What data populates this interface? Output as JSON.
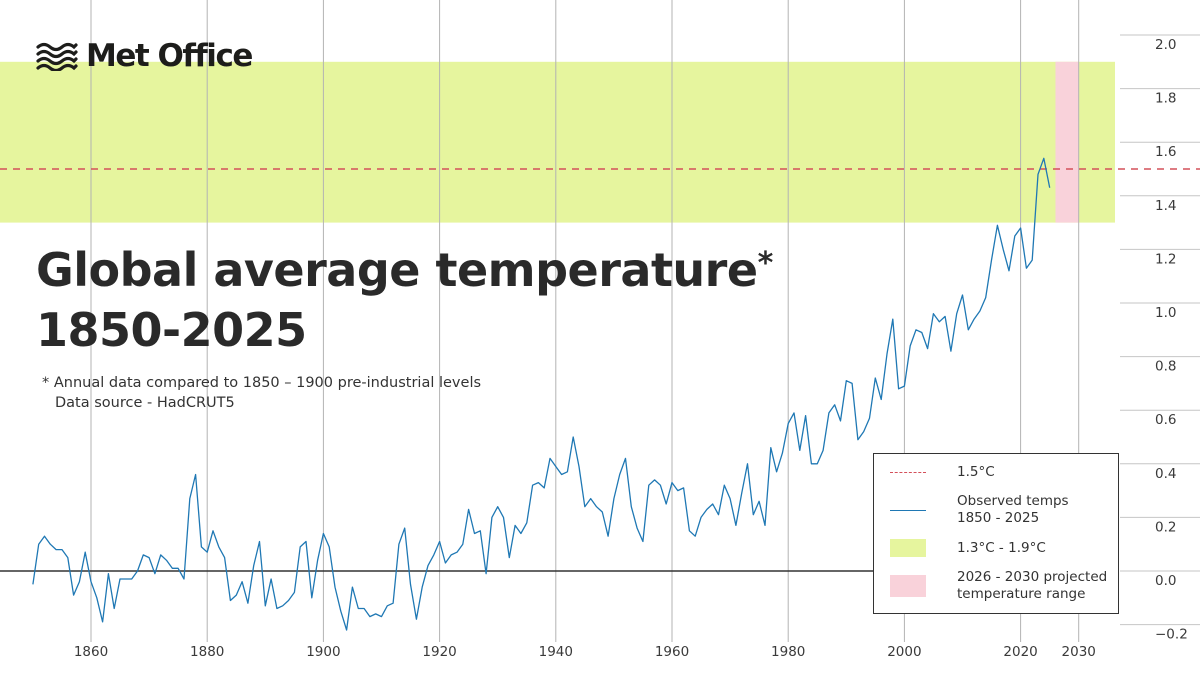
{
  "brand": {
    "name": "Met Office",
    "logo_icon": "met-office-waves-icon"
  },
  "title_line1": "Global average temperature",
  "title_star": "*",
  "title_line2": "1850-2025",
  "footnote": {
    "line1": "*  Annual data compared to 1850 – 1900 pre-industrial levels",
    "line2": "Data source - HadCRUT5"
  },
  "legend": [
    {
      "id": "threshold",
      "label": "1.5°C",
      "symbol": "dashed-line"
    },
    {
      "id": "observed",
      "label_line1": "Observed temps",
      "label_line2": "1850 - 2025",
      "symbol": "line"
    },
    {
      "id": "band",
      "label": "1.3°C - 1.9°C",
      "symbol": "green-box"
    },
    {
      "id": "projection",
      "label_line1": "2026 - 2030 projected",
      "label_line2": "temperature range",
      "symbol": "pink-box"
    }
  ],
  "colors": {
    "observed_line": "#1f78b4",
    "threshold_line": "#d4505a",
    "band_fill": "#e6f59e",
    "projection_fill": "#f9d2da",
    "gridline": "#b3b3b3",
    "zero_line": "#333333",
    "text": "#2a2a2a"
  },
  "chart_data": {
    "type": "line",
    "title": "Global average temperature 1850-2025",
    "xlim": [
      1850,
      2030
    ],
    "ylim": [
      -0.2,
      2.0
    ],
    "x_ticks": [
      1860,
      1880,
      1900,
      1920,
      1940,
      1960,
      1980,
      2000,
      2020,
      2030
    ],
    "x_tick_labels": [
      "1860",
      "1880",
      "1900",
      "1920",
      "1940",
      "1960",
      "1980",
      "2000",
      "2020",
      "2030"
    ],
    "y_ticks": [
      -0.2,
      0.0,
      0.2,
      0.4,
      0.6,
      0.8,
      1.0,
      1.2,
      1.4,
      1.6,
      1.8,
      2.0
    ],
    "y_tick_labels": [
      "−0.2",
      "0.0",
      "0.2",
      "0.4",
      "0.6",
      "0.8",
      "1.0",
      "1.2",
      "1.4",
      "1.6",
      "1.8",
      "2.0"
    ],
    "vertical_grid": true,
    "y_axis_position": "right",
    "legend_position": "bottom-right",
    "threshold": {
      "value": 1.5,
      "style": "dashed"
    },
    "band": {
      "ymin": 1.3,
      "ymax": 1.9
    },
    "projection": {
      "xmin": 2026,
      "xmax": 2030,
      "ymin": 1.3,
      "ymax": 1.9
    },
    "series": [
      {
        "start_year": 1850,
        "years": [
          1850,
          1851,
          1852,
          1853,
          1854,
          1855,
          1856,
          1857,
          1858,
          1859,
          1860,
          1861,
          1862,
          1863,
          1864,
          1865,
          1866,
          1867,
          1868,
          1869,
          1870,
          1871,
          1872,
          1873,
          1874,
          1875,
          1876,
          1877,
          1878,
          1879,
          1880,
          1881,
          1882,
          1883,
          1884,
          1885,
          1886,
          1887,
          1888,
          1889,
          1890,
          1891,
          1892,
          1893,
          1894,
          1895,
          1896,
          1897,
          1898,
          1899,
          1900,
          1901,
          1902,
          1903,
          1904,
          1905,
          1906,
          1907,
          1908,
          1909,
          1910,
          1911,
          1912,
          1913,
          1914,
          1915,
          1916,
          1917,
          1918,
          1919,
          1920,
          1921,
          1922,
          1923,
          1924,
          1925,
          1926,
          1927,
          1928,
          1929,
          1930,
          1931,
          1932,
          1933,
          1934,
          1935,
          1936,
          1937,
          1938,
          1939,
          1940,
          1941,
          1942,
          1943,
          1944,
          1945,
          1946,
          1947,
          1948,
          1949,
          1950,
          1951,
          1952,
          1953,
          1954,
          1955,
          1956,
          1957,
          1958,
          1959,
          1960,
          1961,
          1962,
          1963,
          1964,
          1965,
          1966,
          1967,
          1968,
          1969,
          1970,
          1971,
          1972,
          1973,
          1974,
          1975,
          1976,
          1977,
          1978,
          1979,
          1980,
          1981,
          1982,
          1983,
          1984,
          1985,
          1986,
          1987,
          1988,
          1989,
          1990,
          1991,
          1992,
          1993,
          1994,
          1995,
          1996,
          1997,
          1998,
          1999,
          2000,
          2001,
          2002,
          2003,
          2004,
          2005,
          2006,
          2007,
          2008,
          2009,
          2010,
          2011,
          2012,
          2013,
          2014,
          2015,
          2016,
          2017,
          2018,
          2019,
          2020,
          2021,
          2022,
          2023,
          2024,
          2025
        ],
        "values": [
          -0.05,
          0.1,
          0.13,
          0.1,
          0.08,
          0.08,
          0.05,
          -0.09,
          -0.04,
          0.07,
          -0.04,
          -0.1,
          -0.19,
          -0.01,
          -0.14,
          -0.03,
          -0.03,
          -0.03,
          0.0,
          0.06,
          0.05,
          -0.01,
          0.06,
          0.04,
          0.01,
          0.01,
          -0.03,
          0.27,
          0.36,
          0.09,
          0.07,
          0.15,
          0.09,
          0.05,
          -0.11,
          -0.09,
          -0.04,
          -0.12,
          0.02,
          0.11,
          -0.13,
          -0.03,
          -0.14,
          -0.13,
          -0.11,
          -0.08,
          0.09,
          0.11,
          -0.1,
          0.04,
          0.14,
          0.09,
          -0.06,
          -0.15,
          -0.22,
          -0.06,
          -0.14,
          -0.14,
          -0.17,
          -0.16,
          -0.17,
          -0.13,
          -0.12,
          0.1,
          0.16,
          -0.05,
          -0.18,
          -0.06,
          0.02,
          0.06,
          0.11,
          0.03,
          0.06,
          0.07,
          0.1,
          0.23,
          0.14,
          0.15,
          -0.01,
          0.2,
          0.24,
          0.2,
          0.05,
          0.17,
          0.14,
          0.18,
          0.32,
          0.33,
          0.31,
          0.42,
          0.39,
          0.36,
          0.37,
          0.5,
          0.39,
          0.24,
          0.27,
          0.24,
          0.22,
          0.13,
          0.27,
          0.36,
          0.42,
          0.24,
          0.16,
          0.11,
          0.32,
          0.34,
          0.32,
          0.25,
          0.33,
          0.3,
          0.31,
          0.15,
          0.13,
          0.2,
          0.23,
          0.25,
          0.21,
          0.32,
          0.27,
          0.17,
          0.29,
          0.4,
          0.21,
          0.26,
          0.17,
          0.46,
          0.37,
          0.44,
          0.55,
          0.59,
          0.45,
          0.58,
          0.4,
          0.4,
          0.45,
          0.59,
          0.62,
          0.56,
          0.71,
          0.7,
          0.49,
          0.52,
          0.57,
          0.72,
          0.64,
          0.81,
          0.94,
          0.68,
          0.69,
          0.84,
          0.9,
          0.89,
          0.83,
          0.96,
          0.93,
          0.95,
          0.82,
          0.96,
          1.03,
          0.9,
          0.94,
          0.97,
          1.02,
          1.16,
          1.29,
          1.2,
          1.12,
          1.25,
          1.28,
          1.13,
          1.16,
          1.48,
          1.54,
          1.43
        ]
      }
    ]
  }
}
